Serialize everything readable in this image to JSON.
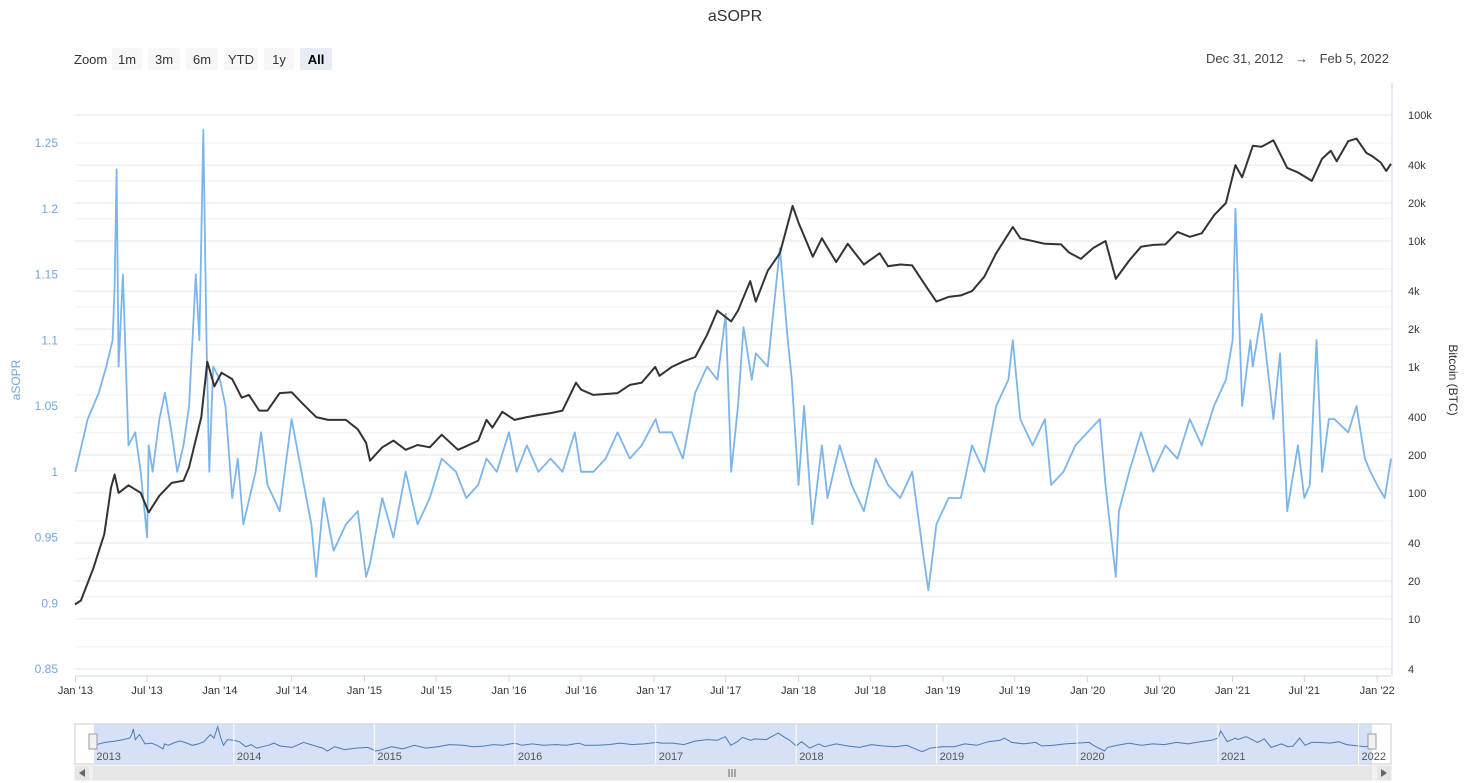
{
  "title": "aSOPR",
  "zoom": {
    "label": "Zoom",
    "buttons": [
      "1m",
      "3m",
      "6m",
      "YTD",
      "1y",
      "All"
    ],
    "active": "All"
  },
  "range": {
    "from": "Dec 31, 2012",
    "arrow": "→",
    "to": "Feb 5, 2022"
  },
  "colors": {
    "asopr": "#7cb5ec",
    "price": "#333333",
    "grid": "#e6e6e6",
    "navigator_fill": "#ccdaf5"
  },
  "chart_data": {
    "type": "line",
    "title": "aSOPR",
    "x_ticks": [
      "Jan '13",
      "Jul '13",
      "Jan '14",
      "Jul '14",
      "Jan '15",
      "Jul '15",
      "Jan '16",
      "Jul '16",
      "Jan '17",
      "Jul '17",
      "Jan '18",
      "Jul '18",
      "Jan '19",
      "Jul '19",
      "Jan '20",
      "Jul '20",
      "Jan '21",
      "Jul '21",
      "Jan '22"
    ],
    "x_range": [
      "2012-12-31",
      "2022-02-05"
    ],
    "grid": true,
    "legend": "none",
    "left_axis": {
      "label": "aSOPR",
      "ticks": [
        "0.85",
        "0.9",
        "0.95",
        "1",
        "1.05",
        "1.1",
        "1.15",
        "1.2",
        "1.25"
      ],
      "ylim": [
        0.85,
        1.27
      ]
    },
    "right_axis": {
      "label": "Bitcoin (BTC)",
      "scale": "log",
      "ticks": [
        "4",
        "10",
        "20",
        "40",
        "100",
        "200",
        "400",
        "1k",
        "2k",
        "4k",
        "10k",
        "20k",
        "40k",
        "100k"
      ],
      "tick_values": [
        4,
        10,
        20,
        40,
        100,
        200,
        400,
        1000,
        2000,
        4000,
        10000,
        20000,
        40000,
        100000
      ]
    },
    "navigator_ticks": [
      "2013",
      "2014",
      "2015",
      "2016",
      "2017",
      "2018",
      "2019",
      "2020",
      "2021",
      "2022"
    ],
    "series": [
      {
        "axis": "left",
        "color": "#7cb5ec",
        "x": [
          "2013-01-01",
          "2013-02-01",
          "2013-03-01",
          "2013-03-20",
          "2013-04-05",
          "2013-04-10",
          "2013-04-15",
          "2013-04-20",
          "2013-05-01",
          "2013-05-15",
          "2013-06-01",
          "2013-06-15",
          "2013-07-01",
          "2013-07-05",
          "2013-07-15",
          "2013-08-01",
          "2013-08-15",
          "2013-09-01",
          "2013-09-15",
          "2013-10-01",
          "2013-10-15",
          "2013-11-01",
          "2013-11-10",
          "2013-11-20",
          "2013-11-28",
          "2013-12-05",
          "2013-12-15",
          "2014-01-01",
          "2014-01-15",
          "2014-02-01",
          "2014-02-15",
          "2014-03-01",
          "2014-04-01",
          "2014-04-15",
          "2014-05-01",
          "2014-06-01",
          "2014-07-01",
          "2014-08-01",
          "2014-08-20",
          "2014-09-01",
          "2014-09-20",
          "2014-10-15",
          "2014-11-15",
          "2014-12-15",
          "2015-01-05",
          "2015-01-15",
          "2015-02-15",
          "2015-03-15",
          "2015-04-15",
          "2015-05-15",
          "2015-06-15",
          "2015-07-15",
          "2015-08-20",
          "2015-09-15",
          "2015-10-15",
          "2015-11-05",
          "2015-12-01",
          "2016-01-01",
          "2016-01-20",
          "2016-02-15",
          "2016-03-15",
          "2016-04-15",
          "2016-05-15",
          "2016-06-15",
          "2016-07-01",
          "2016-08-01",
          "2016-09-01",
          "2016-10-01",
          "2016-11-01",
          "2016-12-01",
          "2017-01-05",
          "2017-01-15",
          "2017-02-15",
          "2017-03-15",
          "2017-04-15",
          "2017-05-15",
          "2017-06-10",
          "2017-07-01",
          "2017-07-15",
          "2017-08-01",
          "2017-08-15",
          "2017-09-05",
          "2017-09-15",
          "2017-10-15",
          "2017-11-15",
          "2017-12-05",
          "2017-12-15",
          "2018-01-01",
          "2018-01-15",
          "2018-02-05",
          "2018-03-01",
          "2018-03-15",
          "2018-04-15",
          "2018-05-15",
          "2018-06-15",
          "2018-07-15",
          "2018-08-15",
          "2018-09-15",
          "2018-10-15",
          "2018-11-15",
          "2018-11-25",
          "2018-12-15",
          "2019-01-15",
          "2019-02-15",
          "2019-03-15",
          "2019-04-15",
          "2019-05-15",
          "2019-06-15",
          "2019-06-26",
          "2019-07-15",
          "2019-08-15",
          "2019-09-15",
          "2019-10-01",
          "2019-11-01",
          "2019-12-01",
          "2020-01-01",
          "2020-02-01",
          "2020-02-15",
          "2020-03-12",
          "2020-03-20",
          "2020-04-15",
          "2020-05-15",
          "2020-06-15",
          "2020-07-15",
          "2020-08-15",
          "2020-09-15",
          "2020-10-15",
          "2020-11-15",
          "2020-12-15",
          "2021-01-01",
          "2021-01-08",
          "2021-01-25",
          "2021-02-15",
          "2021-02-21",
          "2021-03-15",
          "2021-04-14",
          "2021-05-01",
          "2021-05-19",
          "2021-06-15",
          "2021-07-01",
          "2021-07-15",
          "2021-08-01",
          "2021-08-15",
          "2021-09-01",
          "2021-09-15",
          "2021-10-20",
          "2021-11-10",
          "2021-12-01",
          "2021-12-15",
          "2022-01-01",
          "2022-01-20",
          "2022-02-05"
        ],
        "y": [
          1.0,
          1.04,
          1.06,
          1.08,
          1.1,
          1.14,
          1.23,
          1.08,
          1.15,
          1.02,
          1.03,
          1.0,
          0.95,
          1.02,
          1.0,
          1.04,
          1.06,
          1.03,
          1.0,
          1.02,
          1.05,
          1.15,
          1.1,
          1.26,
          1.1,
          1.0,
          1.08,
          1.07,
          1.05,
          0.98,
          1.01,
          0.96,
          1.0,
          1.03,
          0.99,
          0.97,
          1.04,
          0.99,
          0.96,
          0.92,
          0.98,
          0.94,
          0.96,
          0.97,
          0.92,
          0.93,
          0.98,
          0.95,
          1.0,
          0.96,
          0.98,
          1.01,
          1.0,
          0.98,
          0.99,
          1.01,
          1.0,
          1.03,
          1.0,
          1.02,
          1.0,
          1.01,
          1.0,
          1.03,
          1.0,
          1.0,
          1.01,
          1.03,
          1.01,
          1.02,
          1.04,
          1.03,
          1.03,
          1.01,
          1.06,
          1.08,
          1.07,
          1.12,
          1.0,
          1.05,
          1.11,
          1.07,
          1.09,
          1.08,
          1.17,
          1.1,
          1.07,
          0.99,
          1.05,
          0.96,
          1.02,
          0.98,
          1.02,
          0.99,
          0.97,
          1.01,
          0.99,
          0.98,
          1.0,
          0.93,
          0.91,
          0.96,
          0.98,
          0.98,
          1.02,
          1.0,
          1.05,
          1.07,
          1.1,
          1.04,
          1.02,
          1.04,
          0.99,
          1.0,
          1.02,
          1.03,
          1.04,
          0.99,
          0.92,
          0.97,
          1.0,
          1.03,
          1.0,
          1.02,
          1.01,
          1.04,
          1.02,
          1.05,
          1.07,
          1.1,
          1.2,
          1.05,
          1.1,
          1.08,
          1.12,
          1.04,
          1.09,
          0.97,
          1.02,
          0.98,
          0.99,
          1.1,
          1.0,
          1.04,
          1.04,
          1.03,
          1.05,
          1.01,
          1.0,
          0.99,
          0.98,
          1.01
        ]
      },
      {
        "axis": "right",
        "color": "#333333",
        "name": "Bitcoin (BTC)",
        "x": [
          "2012-12-31",
          "2013-01-15",
          "2013-02-15",
          "2013-03-15",
          "2013-04-01",
          "2013-04-10",
          "2013-04-20",
          "2013-05-15",
          "2013-06-15",
          "2013-07-05",
          "2013-08-01",
          "2013-09-01",
          "2013-10-01",
          "2013-10-15",
          "2013-11-15",
          "2013-11-30",
          "2013-12-18",
          "2014-01-05",
          "2014-02-01",
          "2014-02-25",
          "2014-03-15",
          "2014-04-10",
          "2014-05-01",
          "2014-06-01",
          "2014-07-01",
          "2014-08-01",
          "2014-09-01",
          "2014-10-01",
          "2014-11-15",
          "2014-12-15",
          "2015-01-05",
          "2015-01-15",
          "2015-02-15",
          "2015-03-15",
          "2015-04-15",
          "2015-05-15",
          "2015-06-15",
          "2015-07-15",
          "2015-08-25",
          "2015-09-15",
          "2015-10-15",
          "2015-11-05",
          "2015-11-20",
          "2015-12-15",
          "2016-01-15",
          "2016-02-15",
          "2016-03-15",
          "2016-04-15",
          "2016-05-15",
          "2016-06-18",
          "2016-07-01",
          "2016-08-01",
          "2016-09-01",
          "2016-10-01",
          "2016-11-01",
          "2016-12-01",
          "2017-01-04",
          "2017-01-15",
          "2017-02-15",
          "2017-03-15",
          "2017-04-15",
          "2017-05-15",
          "2017-06-10",
          "2017-07-15",
          "2017-08-01",
          "2017-09-01",
          "2017-09-15",
          "2017-10-15",
          "2017-11-15",
          "2017-12-17",
          "2018-01-01",
          "2018-02-06",
          "2018-03-01",
          "2018-04-06",
          "2018-05-05",
          "2018-06-15",
          "2018-07-25",
          "2018-08-15",
          "2018-09-15",
          "2018-10-15",
          "2018-11-20",
          "2018-12-15",
          "2019-01-15",
          "2019-02-15",
          "2019-03-15",
          "2019-04-15",
          "2019-05-15",
          "2019-06-26",
          "2019-07-15",
          "2019-08-15",
          "2019-09-15",
          "2019-10-26",
          "2019-11-15",
          "2019-12-15",
          "2020-01-15",
          "2020-02-15",
          "2020-03-12",
          "2020-04-15",
          "2020-05-15",
          "2020-06-15",
          "2020-07-15",
          "2020-08-15",
          "2020-09-15",
          "2020-10-15",
          "2020-11-15",
          "2020-12-15",
          "2021-01-08",
          "2021-01-25",
          "2021-02-21",
          "2021-03-15",
          "2021-04-14",
          "2021-05-19",
          "2021-06-15",
          "2021-07-20",
          "2021-08-15",
          "2021-09-06",
          "2021-09-21",
          "2021-10-20",
          "2021-11-10",
          "2021-12-05",
          "2021-12-20",
          "2022-01-10",
          "2022-01-24",
          "2022-02-05"
        ],
        "y": [
          13,
          14,
          25,
          47,
          110,
          140,
          100,
          115,
          100,
          70,
          95,
          120,
          125,
          160,
          400,
          1100,
          700,
          900,
          800,
          570,
          600,
          450,
          450,
          620,
          630,
          500,
          400,
          380,
          380,
          320,
          250,
          180,
          230,
          260,
          220,
          240,
          230,
          290,
          220,
          235,
          260,
          380,
          330,
          440,
          380,
          400,
          415,
          430,
          450,
          750,
          660,
          600,
          610,
          620,
          720,
          750,
          1000,
          850,
          1000,
          1100,
          1200,
          1800,
          2800,
          2300,
          2800,
          4800,
          3300,
          5800,
          8000,
          19000,
          14000,
          7500,
          10500,
          6800,
          9500,
          6500,
          8000,
          6300,
          6500,
          6400,
          4300,
          3300,
          3600,
          3700,
          4000,
          5200,
          8000,
          12900,
          10500,
          10000,
          9500,
          9400,
          8100,
          7200,
          8800,
          10000,
          5000,
          7000,
          9000,
          9300,
          9400,
          11800,
          10800,
          11500,
          16000,
          20000,
          40000,
          32000,
          57000,
          56000,
          63000,
          38000,
          35000,
          30000,
          45000,
          52000,
          43000,
          62000,
          65000,
          50000,
          47000,
          42000,
          36000,
          41000
        ]
      }
    ]
  }
}
